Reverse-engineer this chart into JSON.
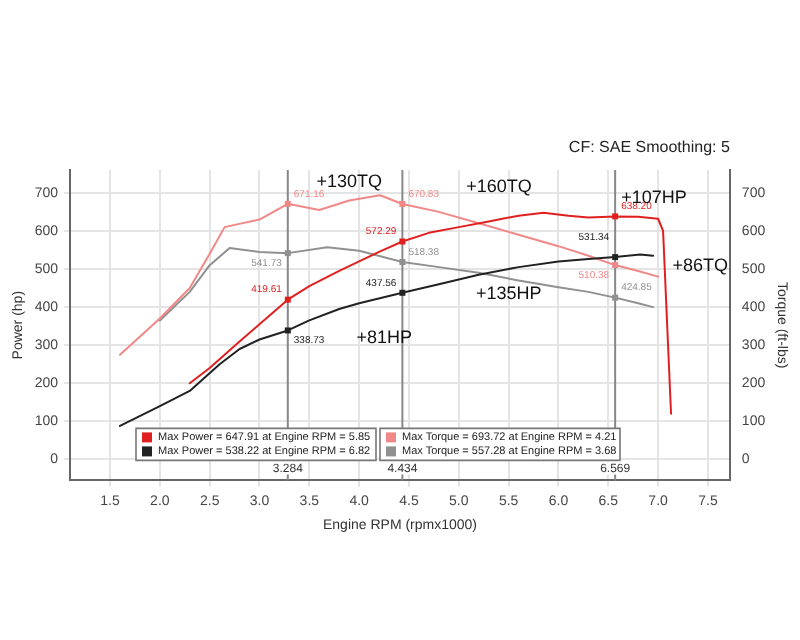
{
  "chart_data": {
    "type": "line",
    "subtitle": "CF: SAE Smoothing: 5",
    "xlabel": "Engine RPM (rpmx1000)",
    "ylabel": "Power (hp)",
    "y2label": "Torque (ft-lbs)",
    "xlim": [
      1.1,
      7.72
    ],
    "xticks": [
      1.5,
      {
        "value": 2,
        "label": "2.0"
      },
      2.5,
      {
        "value": 3,
        "label": "3.0"
      },
      3.5,
      {
        "value": 4,
        "label": "4.0"
      },
      4.5,
      {
        "value": 5,
        "label": "5.0"
      },
      5.5,
      {
        "value": 6,
        "label": "6.0"
      },
      6.5,
      {
        "value": 7,
        "label": "7.0"
      },
      7.5
    ],
    "ylim": [
      -55,
      760
    ],
    "yticks": [
      0,
      100,
      200,
      300,
      400,
      500,
      600,
      700
    ],
    "y2lim": [
      -55,
      760
    ],
    "y2ticks": [
      0,
      100,
      200,
      300,
      400,
      500,
      600,
      700
    ],
    "grid": true,
    "legend": "bottom",
    "series": [
      {
        "name": "Max Power = 647.91 at Engine RPM = 5.85",
        "color": "#e02020",
        "x": [
          2.3,
          2.5,
          2.8,
          3.0,
          3.284,
          3.5,
          3.8,
          4.0,
          4.2,
          4.434,
          4.7,
          5.0,
          5.3,
          5.6,
          5.85,
          6.1,
          6.3,
          6.569,
          6.8,
          7.0,
          7.05,
          7.1,
          7.13
        ],
        "values": [
          200,
          240,
          310,
          355,
          419.61,
          455,
          495,
          520,
          545,
          572.29,
          595,
          610,
          625,
          640,
          647.91,
          640,
          635,
          638.2,
          637,
          632,
          600,
          300,
          120
        ],
        "value_labels": [
          null,
          null,
          null,
          null,
          "419.61",
          null,
          null,
          null,
          null,
          "572.29",
          null,
          null,
          null,
          null,
          null,
          null,
          null,
          "638.20",
          null,
          null,
          null,
          null,
          null
        ]
      },
      {
        "name": "Max Power = 538.22 at Engine RPM = 6.82",
        "color": "#222222",
        "x": [
          1.6,
          2.0,
          2.3,
          2.6,
          2.8,
          3.0,
          3.284,
          3.5,
          3.8,
          4.0,
          4.434,
          4.8,
          5.2,
          5.6,
          6.0,
          6.3,
          6.569,
          6.82,
          6.95
        ],
        "values": [
          88,
          140,
          180,
          250,
          290,
          315,
          338.73,
          365,
          395,
          410,
          437.56,
          460,
          485,
          505,
          520,
          526,
          531.34,
          538.22,
          535
        ],
        "value_labels": [
          null,
          null,
          null,
          null,
          null,
          null,
          "338.73",
          null,
          null,
          null,
          "437.56",
          null,
          null,
          null,
          null,
          null,
          "531.34",
          null,
          null
        ]
      },
      {
        "name": "Max Torque = 693.72 at Engine RPM = 4.21",
        "color": "#f08888",
        "axis": "y2",
        "x": [
          1.6,
          2.0,
          2.3,
          2.5,
          2.65,
          3.0,
          3.284,
          3.6,
          3.9,
          4.21,
          4.434,
          4.8,
          5.2,
          5.6,
          6.0,
          6.3,
          6.569,
          6.8,
          7.0
        ],
        "values": [
          275,
          370,
          450,
          540,
          610,
          630,
          671.16,
          655,
          680,
          693.72,
          670.83,
          650,
          620,
          590,
          560,
          535,
          510.38,
          495,
          480
        ],
        "value_labels": [
          null,
          null,
          null,
          null,
          null,
          null,
          "671.16",
          null,
          null,
          null,
          "670.83",
          null,
          null,
          null,
          null,
          null,
          "510.38",
          null,
          null
        ]
      },
      {
        "name": "Max Torque = 557.28 at Engine RPM = 3.68",
        "color": "#909090",
        "axis": "y2",
        "x": [
          2.0,
          2.3,
          2.5,
          2.7,
          3.0,
          3.284,
          3.68,
          4.0,
          4.434,
          4.8,
          5.2,
          5.6,
          6.0,
          6.3,
          6.569,
          6.8,
          6.95
        ],
        "values": [
          365,
          440,
          510,
          555,
          545,
          541.73,
          557.28,
          548,
          518.38,
          505,
          490,
          470,
          452,
          440,
          424.85,
          410,
          400
        ],
        "value_labels": [
          null,
          null,
          null,
          null,
          null,
          "541.73",
          null,
          null,
          "518.38",
          null,
          null,
          null,
          null,
          null,
          "424.85",
          null,
          null
        ]
      }
    ],
    "ref_lines": [
      {
        "axis": "x",
        "value": 3.284,
        "label": "3.284",
        "color": "#888888"
      },
      {
        "axis": "x",
        "value": 4.434,
        "label": "4.434",
        "color": "#888888"
      },
      {
        "axis": "x",
        "value": 6.569,
        "label": "6.569",
        "color": "#888888"
      }
    ],
    "annotations": [
      "+130TQ",
      "+160TQ",
      "+107HP",
      "+86TQ",
      "+81HP",
      "+135HP"
    ]
  }
}
